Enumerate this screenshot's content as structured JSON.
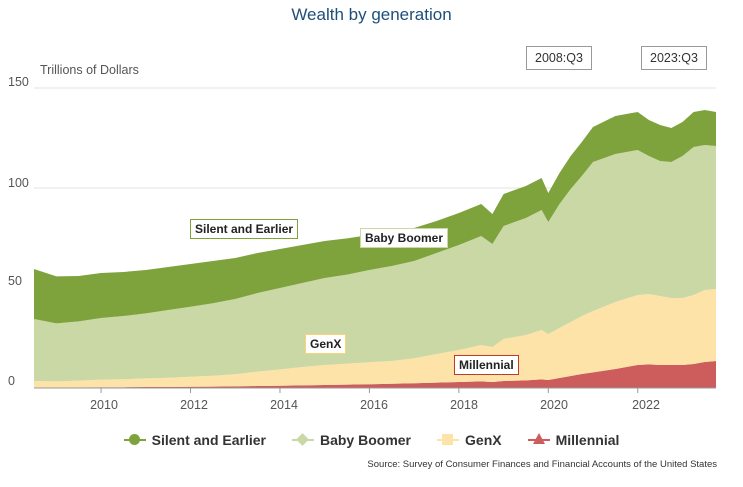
{
  "chart_data": {
    "type": "area",
    "stacked": true,
    "title": "Wealth by generation",
    "ylabel": "Trillions of Dollars",
    "ylim": [
      0,
      150
    ],
    "yticks": [
      0,
      50,
      100,
      150
    ],
    "xlim": [
      2008.5,
      2023.75
    ],
    "xticks": [
      "2010",
      "2012",
      "2014",
      "2016",
      "2018",
      "2020",
      "2022"
    ],
    "date_range_labels": [
      "2008:Q3",
      "2023:Q3"
    ],
    "x": [
      2008.5,
      2009.0,
      2009.5,
      2010.0,
      2010.5,
      2011.0,
      2011.5,
      2012.0,
      2012.5,
      2013.0,
      2013.5,
      2014.0,
      2014.5,
      2015.0,
      2015.5,
      2016.0,
      2016.5,
      2017.0,
      2017.5,
      2018.0,
      2018.5,
      2018.75,
      2019.0,
      2019.5,
      2019.85,
      2020.0,
      2020.25,
      2020.5,
      2020.75,
      2021.0,
      2021.5,
      2022.0,
      2022.25,
      2022.5,
      2022.75,
      2023.0,
      2023.25,
      2023.5,
      2023.75
    ],
    "series": [
      {
        "name": "Millennial",
        "color": "#cd5c5c",
        "marker": "triangle",
        "values": [
          0.2,
          0.2,
          0.3,
          0.4,
          0.4,
          0.5,
          0.5,
          0.6,
          0.7,
          0.8,
          1.0,
          1.1,
          1.3,
          1.5,
          1.7,
          1.9,
          2.1,
          2.4,
          2.7,
          3.0,
          3.3,
          3.0,
          3.5,
          3.8,
          4.3,
          4.0,
          5.0,
          6.0,
          7.0,
          7.8,
          9.5,
          11.5,
          11.8,
          11.5,
          11.5,
          11.5,
          12.0,
          13.0,
          13.5
        ]
      },
      {
        "name": "GenX",
        "color": "#fde3a7",
        "marker": "square",
        "values": [
          3.3,
          3.1,
          3.4,
          3.8,
          4.0,
          4.3,
          4.6,
          5.0,
          5.4,
          6.1,
          7.2,
          8.2,
          9.2,
          10.0,
          10.5,
          11.0,
          11.4,
          12.5,
          14.3,
          16.0,
          18.2,
          17.5,
          21.0,
          22.7,
          24.7,
          23.0,
          25.0,
          27.0,
          29.0,
          30.7,
          33.5,
          35.0,
          35.2,
          34.5,
          33.5,
          33.5,
          34.5,
          36.0,
          36.0
        ]
      },
      {
        "name": "Baby Boomer",
        "color": "#c9d8a5",
        "marker": "diamond",
        "values": [
          31.0,
          29.0,
          29.6,
          30.8,
          31.6,
          32.5,
          33.9,
          35.0,
          36.3,
          37.6,
          39.3,
          40.7,
          42.0,
          43.5,
          44.5,
          46.1,
          47.5,
          48.6,
          50.5,
          52.5,
          54.5,
          51.5,
          56.5,
          58.5,
          60.0,
          56.0,
          62.0,
          66.5,
          70.0,
          74.5,
          74.0,
          72.5,
          69.0,
          67.5,
          68.0,
          71.0,
          74.0,
          72.5,
          71.5
        ]
      },
      {
        "name": "Silent and Earlier",
        "color": "#7ea33c",
        "marker": "circle",
        "values": [
          25.0,
          23.5,
          22.7,
          22.5,
          22.0,
          21.7,
          21.5,
          21.4,
          21.1,
          20.5,
          20.0,
          19.5,
          19.0,
          18.5,
          18.1,
          17.5,
          17.0,
          16.5,
          16.0,
          16.0,
          16.0,
          15.0,
          16.0,
          16.0,
          16.0,
          14.5,
          15.5,
          16.5,
          17.0,
          17.5,
          19.0,
          19.0,
          18.0,
          18.0,
          17.0,
          17.0,
          17.5,
          17.5,
          17.0
        ]
      }
    ],
    "legend_position": "bottom",
    "annotations": [
      {
        "text": "Silent and Earlier",
        "series": "Silent and Earlier"
      },
      {
        "text": "Baby Boomer",
        "series": "Baby Boomer"
      },
      {
        "text": "GenX",
        "series": "GenX"
      },
      {
        "text": "Millennial",
        "series": "Millennial"
      }
    ],
    "source": "Source: Survey of Consumer Finances and Financial Accounts of the United States"
  }
}
